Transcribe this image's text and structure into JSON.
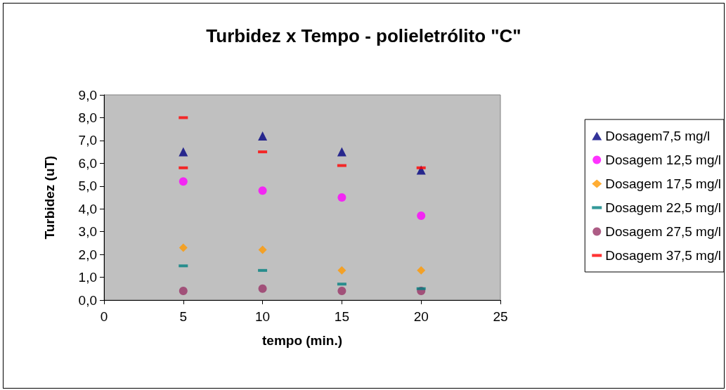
{
  "chart_data": {
    "type": "scatter",
    "title": "Turbidez x Tempo - polieletrólito \"C\"",
    "xlabel": "tempo (min.)",
    "ylabel": "Turbidez (uT)",
    "x": [
      5,
      10,
      15,
      20
    ],
    "series": [
      {
        "name": "Dosagem7,5 mg/l",
        "color": "#000080",
        "marker": "triangle",
        "values": [
          6.5,
          7.2,
          6.5,
          5.7
        ]
      },
      {
        "name": "Dosagem 12,5 mg/l",
        "color": "#ff00ff",
        "marker": "circle",
        "values": [
          5.2,
          4.8,
          4.5,
          3.7
        ]
      },
      {
        "name": "Dosagem 17,5 mg/l",
        "color": "#ff9900",
        "marker": "diamond",
        "values": [
          2.3,
          2.2,
          1.3,
          1.3
        ]
      },
      {
        "name": "Dosagem 22,5 mg/l",
        "color": "#008080",
        "marker": "square",
        "values": [
          1.5,
          1.3,
          0.7,
          0.5
        ]
      },
      {
        "name": "Dosagem 27,5 mg/l",
        "color": "#993366",
        "marker": "circle",
        "values": [
          0.4,
          0.5,
          0.4,
          0.4
        ]
      },
      {
        "name": "Dosagem 37,5 mg/l",
        "color": "#ff0000",
        "marker": "square",
        "x": [
          5,
          5,
          10,
          15,
          20
        ],
        "values": [
          8.0,
          5.8,
          6.5,
          5.9,
          5.8
        ]
      }
    ],
    "xlim": [
      0,
      25
    ],
    "xticks": [
      0,
      5,
      10,
      15,
      20,
      25
    ],
    "ylim": [
      0,
      9
    ],
    "yticks": [
      {
        "value": 0,
        "label": "0,0"
      },
      {
        "value": 1,
        "label": "1,0"
      },
      {
        "value": 2,
        "label": "2,0"
      },
      {
        "value": 3,
        "label": "3,0"
      },
      {
        "value": 4,
        "label": "4,0"
      },
      {
        "value": 5,
        "label": "5,0"
      },
      {
        "value": 6,
        "label": "6,0"
      },
      {
        "value": 7,
        "label": "7,0"
      },
      {
        "value": 8,
        "label": "8,0"
      },
      {
        "value": 9,
        "label": "9,0"
      }
    ],
    "grid": false,
    "legend": "right"
  }
}
